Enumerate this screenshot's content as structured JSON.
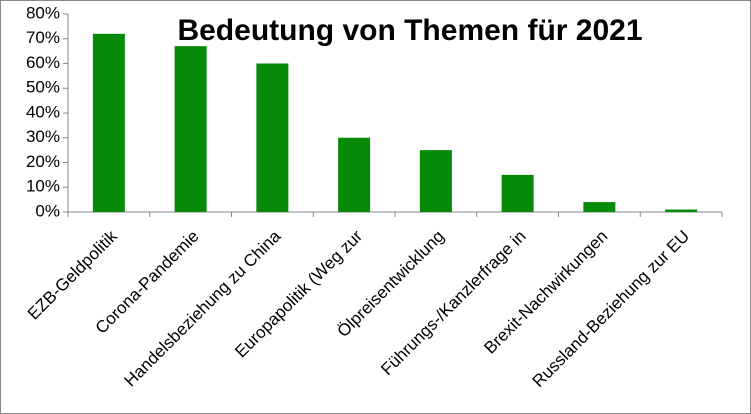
{
  "chart_data": {
    "type": "bar",
    "title": "Bedeutung von Themen für 2021",
    "categories": [
      "EZB-Geldpolitik",
      "Corona-Pandemie",
      "Handelsbeziehung zu China",
      "Europapolitik (Weg zur",
      "Ölpreisentwicklung",
      "Führungs-/Kanzlerfrage in",
      "Brexit-Nachwirkungen",
      "Russland-Beziehung zur EU"
    ],
    "values": [
      72,
      67,
      60,
      30,
      25,
      15,
      4,
      1
    ],
    "color": "#078a07",
    "ylim": [
      0,
      80
    ],
    "yticks": [
      {
        "value": 0,
        "label": "0%"
      },
      {
        "value": 10,
        "label": "10%"
      },
      {
        "value": 20,
        "label": "20%"
      },
      {
        "value": 30,
        "label": "30%"
      },
      {
        "value": 40,
        "label": "40%"
      },
      {
        "value": 50,
        "label": "50%"
      },
      {
        "value": 60,
        "label": "60%"
      },
      {
        "value": 70,
        "label": "70%"
      },
      {
        "value": 80,
        "label": "80%"
      }
    ],
    "grid": false
  }
}
